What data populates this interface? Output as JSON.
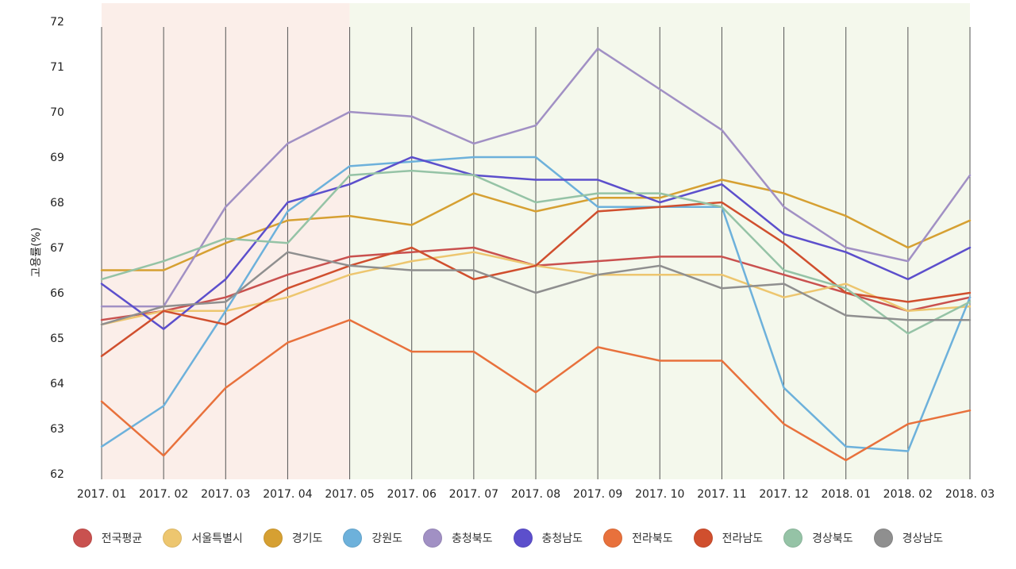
{
  "chart_data": {
    "type": "line",
    "title": "",
    "xlabel": "",
    "ylabel": "고용률(%)",
    "ylim": [
      62,
      72
    ],
    "yticks": [
      62,
      63,
      64,
      65,
      66,
      67,
      68,
      69,
      70,
      71,
      72
    ],
    "categories": [
      "2017. 01",
      "2017. 02",
      "2017. 03",
      "2017. 04",
      "2017. 05",
      "2017. 06",
      "2017. 07",
      "2017. 08",
      "2017. 09",
      "2017. 10",
      "2017. 11",
      "2017. 12",
      "2018. 01",
      "2018. 02",
      "2018. 03"
    ],
    "shaded_ranges": [
      {
        "from": "2017. 01",
        "to": "2017. 05",
        "color": "#fbeee9"
      },
      {
        "from": "2017. 05",
        "to": "2018. 03",
        "color": "#f4f8ec"
      }
    ],
    "grid": "vertical",
    "legend_position": "bottom",
    "series": [
      {
        "name": "전국평균",
        "color": "#c9514f",
        "values": [
          65.4,
          65.6,
          65.9,
          66.4,
          66.8,
          66.9,
          67.0,
          66.6,
          66.7,
          66.8,
          66.8,
          66.4,
          66.0,
          65.6,
          65.9
        ]
      },
      {
        "name": "서울특별시",
        "color": "#edc66f",
        "values": [
          65.3,
          65.6,
          65.6,
          65.9,
          66.4,
          66.7,
          66.9,
          66.6,
          66.4,
          66.4,
          66.4,
          65.9,
          66.2,
          65.6,
          65.7
        ]
      },
      {
        "name": "경기도",
        "color": "#d6a032",
        "values": [
          66.5,
          66.5,
          67.1,
          67.6,
          67.7,
          67.5,
          68.2,
          67.8,
          68.1,
          68.1,
          68.5,
          68.2,
          67.7,
          67.0,
          67.6
        ]
      },
      {
        "name": "강원도",
        "color": "#6db1db",
        "values": [
          62.6,
          63.5,
          65.6,
          67.8,
          68.8,
          68.9,
          69.0,
          69.0,
          67.9,
          67.9,
          67.9,
          63.9,
          62.6,
          62.5,
          65.9
        ]
      },
      {
        "name": "충청북도",
        "color": "#a190c4",
        "values": [
          65.7,
          65.7,
          67.9,
          69.3,
          70.0,
          69.9,
          69.3,
          69.7,
          71.4,
          70.5,
          69.6,
          67.9,
          67.0,
          66.7,
          68.6
        ]
      },
      {
        "name": "충청남도",
        "color": "#5c4fcc",
        "values": [
          66.2,
          65.2,
          66.3,
          68.0,
          68.4,
          69.0,
          68.6,
          68.5,
          68.5,
          68.0,
          68.4,
          67.3,
          66.9,
          66.3,
          67.0
        ]
      },
      {
        "name": "전라북도",
        "color": "#e8713c",
        "values": [
          63.6,
          62.4,
          63.9,
          64.9,
          65.4,
          64.7,
          64.7,
          63.8,
          64.8,
          64.5,
          64.5,
          63.1,
          62.3,
          63.1,
          63.4
        ]
      },
      {
        "name": "전라남도",
        "color": "#d04f2e",
        "values": [
          64.6,
          65.6,
          65.3,
          66.1,
          66.6,
          67.0,
          66.3,
          66.6,
          67.8,
          67.9,
          68.0,
          67.1,
          66.0,
          65.8,
          66.0
        ]
      },
      {
        "name": "경상북도",
        "color": "#95c3a6",
        "values": [
          66.3,
          66.7,
          67.2,
          67.1,
          68.6,
          68.7,
          68.6,
          68.0,
          68.2,
          68.2,
          67.9,
          66.5,
          66.1,
          65.1,
          65.8
        ]
      },
      {
        "name": "경상남도",
        "color": "#8f8f8f",
        "values": [
          65.3,
          65.7,
          65.8,
          66.9,
          66.6,
          66.5,
          66.5,
          66.0,
          66.4,
          66.6,
          66.1,
          66.2,
          65.5,
          65.4,
          65.4
        ]
      }
    ]
  }
}
